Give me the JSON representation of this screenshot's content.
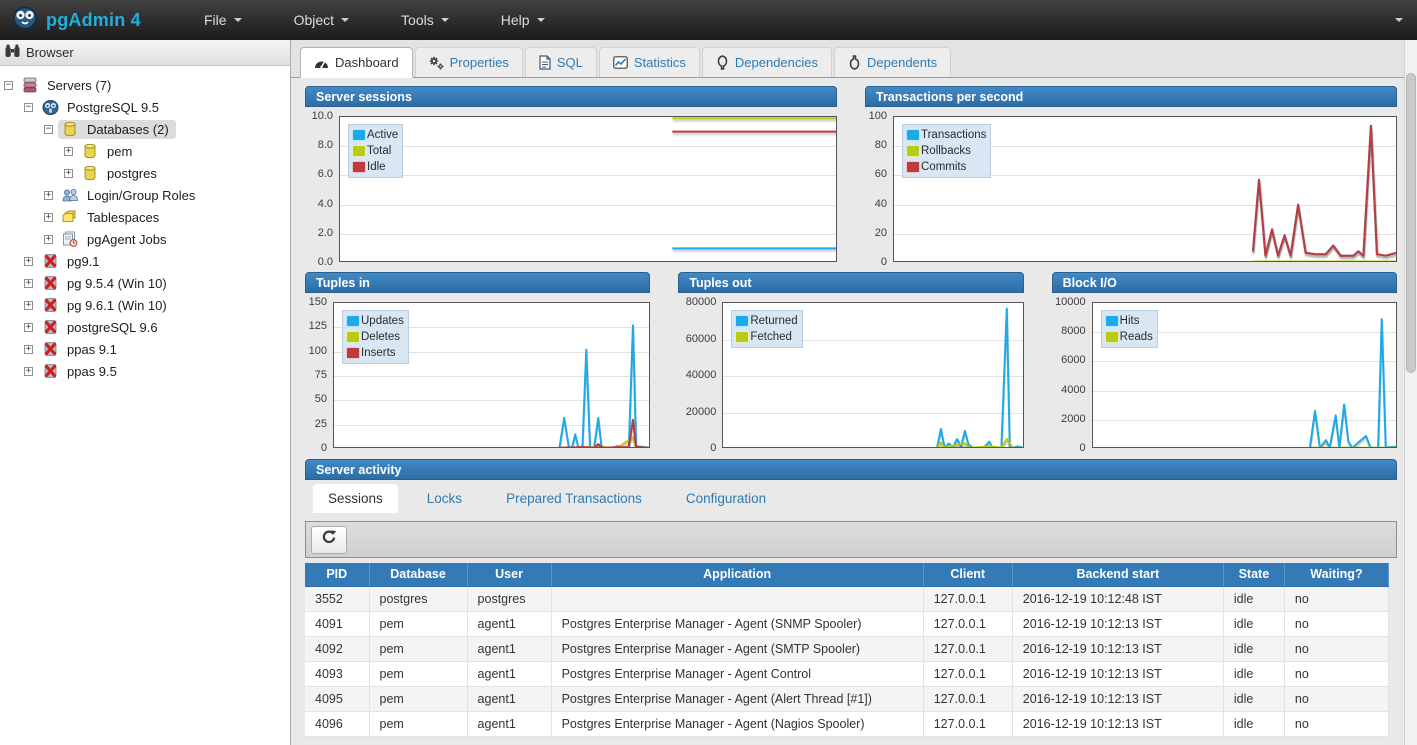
{
  "navbar": {
    "brand": "pgAdmin 4",
    "menus": [
      {
        "label": "File"
      },
      {
        "label": "Object"
      },
      {
        "label": "Tools"
      },
      {
        "label": "Help"
      }
    ]
  },
  "browser": {
    "title": "Browser",
    "tree": [
      {
        "label": "Servers (7)",
        "level": 0,
        "icon": "server-group",
        "expander": "minus",
        "selected": false
      },
      {
        "label": "PostgreSQL 9.5",
        "level": 1,
        "icon": "postgres-server",
        "expander": "minus",
        "selected": false
      },
      {
        "label": "Databases (2)",
        "level": 2,
        "icon": "database",
        "expander": "minus",
        "selected": true
      },
      {
        "label": "pem",
        "level": 3,
        "icon": "database",
        "expander": "plus",
        "selected": false
      },
      {
        "label": "postgres",
        "level": 3,
        "icon": "database",
        "expander": "plus",
        "selected": false
      },
      {
        "label": "Login/Group Roles",
        "level": 2,
        "icon": "users",
        "expander": "plus",
        "selected": false
      },
      {
        "label": "Tablespaces",
        "level": 2,
        "icon": "tablespaces",
        "expander": "plus",
        "selected": false
      },
      {
        "label": "pgAgent Jobs",
        "level": 2,
        "icon": "jobs",
        "expander": "plus",
        "selected": false
      },
      {
        "label": "pg9.1",
        "level": 1,
        "icon": "server-disconnected",
        "expander": "plus",
        "selected": false
      },
      {
        "label": "pg 9.5.4 (Win 10)",
        "level": 1,
        "icon": "server-disconnected",
        "expander": "plus",
        "selected": false
      },
      {
        "label": "pg 9.6.1 (Win 10)",
        "level": 1,
        "icon": "server-disconnected",
        "expander": "plus",
        "selected": false
      },
      {
        "label": "postgreSQL 9.6",
        "level": 1,
        "icon": "server-disconnected",
        "expander": "plus",
        "selected": false
      },
      {
        "label": "ppas 9.1",
        "level": 1,
        "icon": "server-disconnected",
        "expander": "plus",
        "selected": false
      },
      {
        "label": "ppas 9.5",
        "level": 1,
        "icon": "server-disconnected",
        "expander": "plus",
        "selected": false
      }
    ]
  },
  "tabs": [
    {
      "label": "Dashboard",
      "icon": "dashboard-icon",
      "active": true
    },
    {
      "label": "Properties",
      "icon": "properties-icon",
      "active": false
    },
    {
      "label": "SQL",
      "icon": "sql-icon",
      "active": false
    },
    {
      "label": "Statistics",
      "icon": "statistics-icon",
      "active": false
    },
    {
      "label": "Dependencies",
      "icon": "dependencies-icon",
      "active": false
    },
    {
      "label": "Dependents",
      "icon": "dependents-icon",
      "active": false
    }
  ],
  "chart_data": [
    {
      "id": "server-sessions",
      "type": "line",
      "row": 1,
      "title": "Server sessions",
      "ylim": [
        0,
        10
      ],
      "yticks": [
        "10.0",
        "8.0",
        "6.0",
        "4.0",
        "2.0",
        "0.0"
      ],
      "label_width": 34,
      "grid": true,
      "legend_position": "top-left",
      "series": [
        {
          "name": "Active",
          "color": "#1cabe8",
          "points": [
            [
              0.67,
              1
            ],
            [
              1,
              1
            ]
          ]
        },
        {
          "name": "Total",
          "color": "#b8cc14",
          "points": [
            [
              0.67,
              10
            ],
            [
              1,
              10
            ]
          ]
        },
        {
          "name": "Idle",
          "color": "#bf3a3d",
          "points": [
            [
              0.67,
              9
            ],
            [
              1,
              9
            ]
          ]
        }
      ]
    },
    {
      "id": "transactions-per-second",
      "type": "line",
      "row": 1,
      "title": "Transactions per second",
      "ylim": [
        0,
        100
      ],
      "yticks": [
        "100",
        "80",
        "60",
        "40",
        "20",
        "0"
      ],
      "label_width": 28,
      "grid": true,
      "legend_position": "top-left",
      "series": [
        {
          "name": "Transactions",
          "color": "#1cabe8",
          "points": [
            [
              0.715,
              8
            ],
            [
              0.727,
              57
            ],
            [
              0.74,
              5
            ],
            [
              0.753,
              23
            ],
            [
              0.765,
              5
            ],
            [
              0.778,
              19
            ],
            [
              0.79,
              5
            ],
            [
              0.805,
              40
            ],
            [
              0.82,
              7
            ],
            [
              0.84,
              6
            ],
            [
              0.86,
              6
            ],
            [
              0.875,
              12
            ],
            [
              0.89,
              5
            ],
            [
              0.915,
              5
            ],
            [
              0.925,
              8
            ],
            [
              0.935,
              5
            ],
            [
              0.95,
              94
            ],
            [
              0.962,
              6
            ],
            [
              0.98,
              5
            ],
            [
              1,
              7
            ]
          ]
        },
        {
          "name": "Rollbacks",
          "color": "#b8cc14",
          "points": [
            [
              0.715,
              1
            ],
            [
              1,
              1
            ]
          ]
        },
        {
          "name": "Commits",
          "color": "#bf3a3d",
          "points": [
            [
              0.715,
              8
            ],
            [
              0.727,
              57
            ],
            [
              0.74,
              5
            ],
            [
              0.753,
              23
            ],
            [
              0.765,
              5
            ],
            [
              0.778,
              19
            ],
            [
              0.79,
              5
            ],
            [
              0.805,
              40
            ],
            [
              0.82,
              7
            ],
            [
              0.84,
              6
            ],
            [
              0.86,
              6
            ],
            [
              0.875,
              12
            ],
            [
              0.89,
              5
            ],
            [
              0.915,
              5
            ],
            [
              0.925,
              8
            ],
            [
              0.935,
              5
            ],
            [
              0.95,
              94
            ],
            [
              0.962,
              6
            ],
            [
              0.98,
              5
            ],
            [
              1,
              7
            ]
          ]
        }
      ]
    },
    {
      "id": "tuples-in",
      "type": "line",
      "row": 2,
      "title": "Tuples in",
      "ylim": [
        0,
        150
      ],
      "yticks": [
        "150",
        "125",
        "100",
        "75",
        "50",
        "25",
        "0"
      ],
      "label_width": 28,
      "grid": true,
      "legend_position": "top-left",
      "series": [
        {
          "name": "Updates",
          "color": "#1cabe8",
          "points": [
            [
              0.715,
              0
            ],
            [
              0.73,
              32
            ],
            [
              0.745,
              0
            ],
            [
              0.755,
              2
            ],
            [
              0.765,
              15
            ],
            [
              0.775,
              0
            ],
            [
              0.788,
              3
            ],
            [
              0.8,
              102
            ],
            [
              0.812,
              0
            ],
            [
              0.825,
              2
            ],
            [
              0.838,
              32
            ],
            [
              0.848,
              3
            ],
            [
              0.858,
              0
            ],
            [
              0.885,
              1
            ],
            [
              0.9,
              3
            ],
            [
              0.912,
              1
            ],
            [
              0.935,
              2
            ],
            [
              0.948,
              127
            ],
            [
              0.958,
              3
            ],
            [
              1,
              1
            ]
          ]
        },
        {
          "name": "Deletes",
          "color": "#b8cc14",
          "points": [
            [
              0.715,
              1
            ],
            [
              0.838,
              2
            ],
            [
              0.9,
              1
            ],
            [
              0.948,
              12
            ],
            [
              0.958,
              1
            ],
            [
              1,
              1
            ]
          ]
        },
        {
          "name": "Inserts",
          "color": "#bf3a3d",
          "points": [
            [
              0.715,
              1
            ],
            [
              0.8,
              2
            ],
            [
              0.825,
              1
            ],
            [
              0.838,
              5
            ],
            [
              0.848,
              2
            ],
            [
              0.858,
              1
            ],
            [
              0.9,
              2
            ],
            [
              0.935,
              2
            ],
            [
              0.948,
              30
            ],
            [
              0.958,
              2
            ],
            [
              1,
              1
            ]
          ]
        }
      ]
    },
    {
      "id": "tuples-out",
      "type": "line",
      "row": 2,
      "title": "Tuples out",
      "ylim": [
        0,
        80000
      ],
      "yticks": [
        "80000",
        "60000",
        "40000",
        "20000",
        "0"
      ],
      "label_width": 44,
      "grid": true,
      "legend_position": "top-left",
      "series": [
        {
          "name": "Returned",
          "color": "#1cabe8",
          "points": [
            [
              0.715,
              300
            ],
            [
              0.728,
              11000
            ],
            [
              0.74,
              800
            ],
            [
              0.755,
              3000
            ],
            [
              0.768,
              800
            ],
            [
              0.782,
              5500
            ],
            [
              0.795,
              1200
            ],
            [
              0.808,
              10000
            ],
            [
              0.82,
              2500
            ],
            [
              0.835,
              400
            ],
            [
              0.87,
              400
            ],
            [
              0.89,
              4000
            ],
            [
              0.9,
              400
            ],
            [
              0.93,
              400
            ],
            [
              0.948,
              77000
            ],
            [
              0.958,
              800
            ],
            [
              0.968,
              500
            ],
            [
              0.985,
              1500
            ],
            [
              1,
              800
            ]
          ]
        },
        {
          "name": "Fetched",
          "color": "#b8cc14",
          "points": [
            [
              0.715,
              200
            ],
            [
              0.728,
              3500
            ],
            [
              0.74,
              500
            ],
            [
              0.755,
              1500
            ],
            [
              0.782,
              2200
            ],
            [
              0.808,
              3200
            ],
            [
              0.82,
              900
            ],
            [
              0.835,
              200
            ],
            [
              0.89,
              1600
            ],
            [
              0.93,
              200
            ],
            [
              0.948,
              5500
            ],
            [
              0.968,
              300
            ],
            [
              1,
              600
            ]
          ]
        }
      ]
    },
    {
      "id": "block-io",
      "type": "line",
      "row": 2,
      "title": "Block I/O",
      "ylim": [
        0,
        10000
      ],
      "yticks": [
        "10000",
        "8000",
        "6000",
        "4000",
        "2000",
        "0"
      ],
      "label_width": 40,
      "grid": true,
      "legend_position": "top-left",
      "series": [
        {
          "name": "Hits",
          "color": "#1cabe8",
          "points": [
            [
              0.715,
              50
            ],
            [
              0.732,
              2600
            ],
            [
              0.748,
              50
            ],
            [
              0.768,
              600
            ],
            [
              0.78,
              50
            ],
            [
              0.8,
              2300
            ],
            [
              0.812,
              50
            ],
            [
              0.828,
              3050
            ],
            [
              0.842,
              500
            ],
            [
              0.855,
              50
            ],
            [
              0.9,
              900
            ],
            [
              0.915,
              50
            ],
            [
              0.94,
              50
            ],
            [
              0.952,
              8900
            ],
            [
              0.965,
              120
            ],
            [
              1,
              150
            ]
          ]
        },
        {
          "name": "Reads",
          "color": "#b8cc14",
          "points": [
            [
              0.715,
              80
            ],
            [
              1,
              80
            ]
          ]
        }
      ]
    }
  ],
  "server_activity": {
    "title": "Server activity",
    "tabs": [
      {
        "label": "Sessions",
        "active": true
      },
      {
        "label": "Locks",
        "active": false
      },
      {
        "label": "Prepared Transactions",
        "active": false
      },
      {
        "label": "Configuration",
        "active": false
      }
    ],
    "toolbar": {
      "refresh_icon": "refresh-icon"
    },
    "table": {
      "columns": [
        "PID",
        "Database",
        "User",
        "Application",
        "Client",
        "Backend start",
        "State",
        "Waiting?"
      ],
      "rows": [
        [
          "3552",
          "postgres",
          "postgres",
          "",
          "127.0.0.1",
          "2016-12-19 10:12:48 IST",
          "idle",
          "no"
        ],
        [
          "4091",
          "pem",
          "agent1",
          "Postgres Enterprise Manager - Agent (SNMP Spooler)",
          "127.0.0.1",
          "2016-12-19 10:12:13 IST",
          "idle",
          "no"
        ],
        [
          "4092",
          "pem",
          "agent1",
          "Postgres Enterprise Manager - Agent (SMTP Spooler)",
          "127.0.0.1",
          "2016-12-19 10:12:13 IST",
          "idle",
          "no"
        ],
        [
          "4093",
          "pem",
          "agent1",
          "Postgres Enterprise Manager - Agent Control",
          "127.0.0.1",
          "2016-12-19 10:12:13 IST",
          "idle",
          "no"
        ],
        [
          "4095",
          "pem",
          "agent1",
          "Postgres Enterprise Manager - Agent (Alert Thread [#1])",
          "127.0.0.1",
          "2016-12-19 10:12:13 IST",
          "idle",
          "no"
        ],
        [
          "4096",
          "pem",
          "agent1",
          "Postgres Enterprise Manager - Agent (Nagios Spooler)",
          "127.0.0.1",
          "2016-12-19 10:12:13 IST",
          "idle",
          "no"
        ]
      ]
    }
  }
}
